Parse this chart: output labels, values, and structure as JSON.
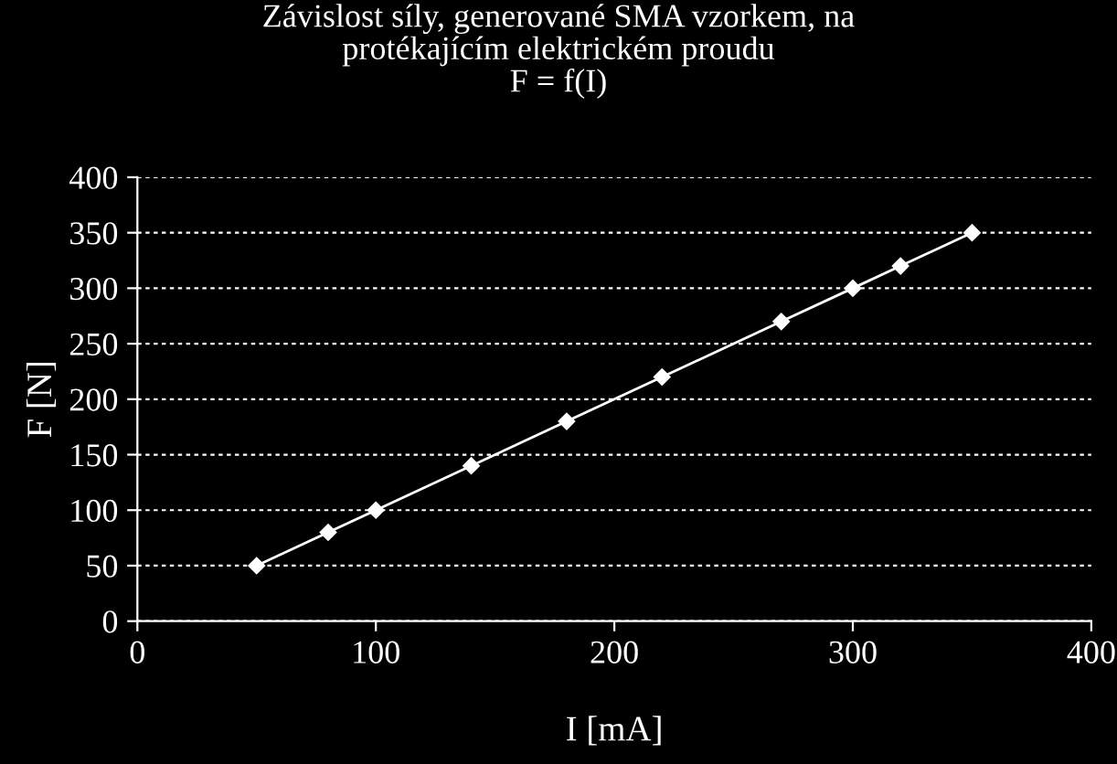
{
  "chart_data": {
    "type": "line",
    "title": "Závislost síly, generované SMA vzorkem, na\nprotékajícím elektrickém proudu\nF = f(I)",
    "xlabel": "I [mA]",
    "ylabel": "F [N]",
    "series": [
      {
        "color": "#ffffff",
        "x": [
          50,
          80,
          100,
          140,
          180,
          220,
          270,
          300,
          320,
          350
        ],
        "values": [
          50,
          80,
          100,
          140,
          180,
          220,
          270,
          300,
          320,
          350
        ]
      }
    ],
    "xlim": [
      0,
      400
    ],
    "xticks": [
      0,
      100,
      200,
      300,
      400
    ],
    "ylim": [
      0,
      400
    ],
    "yticks": [
      0,
      50,
      100,
      150,
      200,
      250,
      300,
      350,
      400
    ],
    "grid": "y",
    "marker": "diamond",
    "line_style": "solid",
    "legend": false
  }
}
